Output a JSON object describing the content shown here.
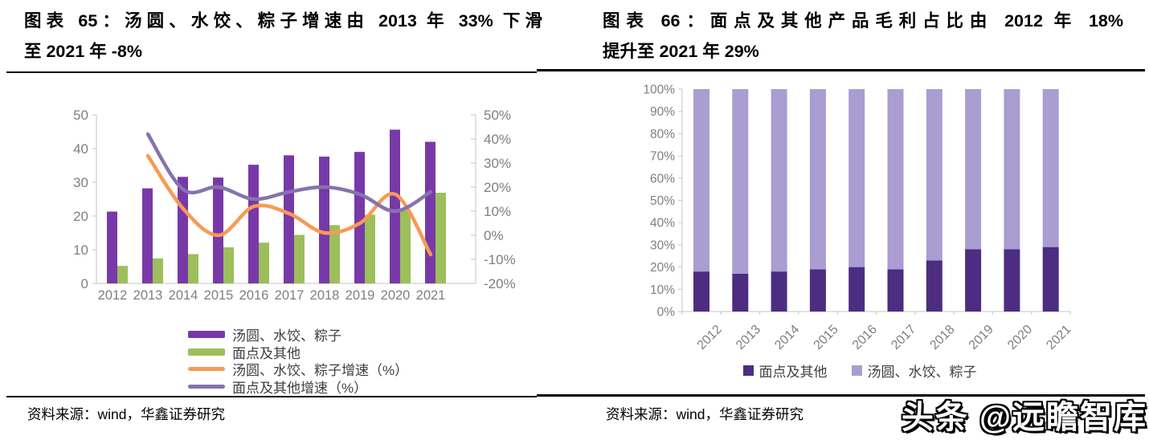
{
  "left_panel": {
    "title_line1": "图表 65：汤圆、水饺、粽子增速由 2013 年 33% 下滑",
    "title_line2": "至 2021 年 -8%",
    "source": "资料来源：wind，华鑫证券研究"
  },
  "right_panel": {
    "title_line1": "图表 66：面点及其他产品毛利占比由 2012 年 18%",
    "title_line2": "提升至 2021 年 29%",
    "source": "资料来源：wind，华鑫证券研究"
  },
  "watermark": {
    "text": "头条 @远瞻智库"
  },
  "colors": {
    "bar_purple": "#7839A8",
    "bar_green": "#9CBF5B",
    "line_orange": "#F89A55",
    "line_violet": "#8673AE",
    "stack_dark_purple": "#4C2D82",
    "stack_light_purple": "#A99DD1",
    "axis_line": "#C6C6C6",
    "axis_text": "#7F7F7F",
    "legend_text": "#3F3F3F"
  },
  "chart_data": [
    {
      "type": "bar",
      "subtype": "combo-bar-line-dual-axis",
      "categories": [
        "2012",
        "2013",
        "2014",
        "2015",
        "2016",
        "2017",
        "2018",
        "2019",
        "2020",
        "2021"
      ],
      "series": [
        {
          "name": "汤圆、水饺、粽子",
          "type": "bar",
          "axis": "left",
          "color": "#7839A8",
          "values": [
            21.3,
            28.2,
            31.6,
            31.4,
            35.2,
            38.0,
            37.6,
            39.0,
            45.6,
            42.0
          ]
        },
        {
          "name": "面点及其他",
          "type": "bar",
          "axis": "left",
          "color": "#9CBF5B",
          "values": [
            5.2,
            7.4,
            8.7,
            10.7,
            12.1,
            14.4,
            17.3,
            20.4,
            21.7,
            26.9
          ]
        },
        {
          "name": "汤圆、水饺、粽子增速（%）",
          "type": "line",
          "axis": "right",
          "color": "#F89A55",
          "values": [
            null,
            33,
            11,
            0,
            12,
            9,
            1,
            5,
            17,
            -8
          ]
        },
        {
          "name": "面点及其他增速（%）",
          "type": "line",
          "axis": "right",
          "color": "#8673AE",
          "values": [
            null,
            42,
            19,
            20,
            15,
            18,
            20,
            17,
            10,
            18
          ]
        }
      ],
      "left_axis": {
        "min": 0,
        "max": 50,
        "ticks": [
          "0",
          "10",
          "20",
          "30",
          "40",
          "50"
        ]
      },
      "right_axis": {
        "min": -20,
        "max": 50,
        "ticks": [
          "-20%",
          "-10%",
          "0%",
          "10%",
          "20%",
          "30%",
          "40%",
          "50%"
        ]
      },
      "grid": false,
      "legend_position": "bottom-left"
    },
    {
      "type": "bar",
      "subtype": "stacked-bar-100",
      "categories": [
        "2012",
        "2013",
        "2014",
        "2015",
        "2016",
        "2017",
        "2018",
        "2019",
        "2020",
        "2021"
      ],
      "series": [
        {
          "name": "面点及其他",
          "color": "#4C2D82",
          "values": [
            18,
            17,
            18,
            19,
            20,
            19,
            23,
            28,
            28,
            29
          ]
        },
        {
          "name": "汤圆、水饺、粽子",
          "color": "#A99DD1",
          "values": [
            82,
            83,
            82,
            81,
            80,
            81,
            77,
            72,
            72,
            71
          ]
        }
      ],
      "y_axis": {
        "min": 0,
        "max": 100,
        "ticks": [
          "0%",
          "10%",
          "20%",
          "30%",
          "40%",
          "50%",
          "60%",
          "70%",
          "80%",
          "90%",
          "100%"
        ]
      },
      "grid": false,
      "legend_position": "bottom-center"
    }
  ]
}
